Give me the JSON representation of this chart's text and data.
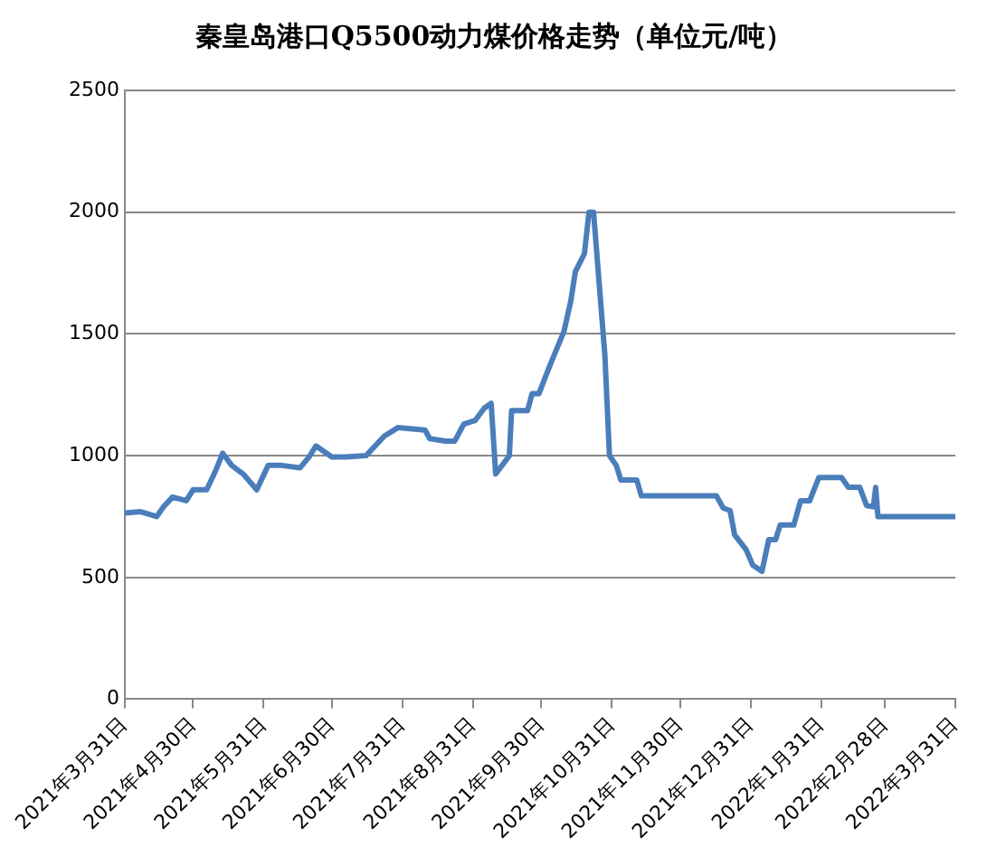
{
  "chart_data": {
    "type": "line",
    "title": "秦皇岛港口Q5500动力煤价格走势（单位元/吨）",
    "x": [
      "2021-03-31",
      "2021-04-07",
      "2021-04-14",
      "2021-04-17",
      "2021-04-21",
      "2021-04-27",
      "2021-04-30",
      "2021-05-06",
      "2021-05-10",
      "2021-05-13",
      "2021-05-17",
      "2021-05-22",
      "2021-05-28",
      "2021-06-02",
      "2021-06-08",
      "2021-06-16",
      "2021-06-20",
      "2021-06-23",
      "2021-06-30",
      "2021-07-06",
      "2021-07-15",
      "2021-07-23",
      "2021-07-29",
      "2021-08-10",
      "2021-08-12",
      "2021-08-19",
      "2021-08-23",
      "2021-08-27",
      "2021-09-01",
      "2021-09-05",
      "2021-09-08",
      "2021-09-10",
      "2021-09-16",
      "2021-09-17",
      "2021-09-24",
      "2021-09-26",
      "2021-09-29",
      "2021-10-04",
      "2021-10-10",
      "2021-10-13",
      "2021-10-15",
      "2021-10-19",
      "2021-10-21",
      "2021-10-23",
      "2021-10-28",
      "2021-10-30",
      "2021-11-02",
      "2021-11-04",
      "2021-11-11",
      "2021-11-13",
      "2021-12-16",
      "2021-12-19",
      "2021-12-22",
      "2021-12-24",
      "2021-12-29",
      "2022-01-01",
      "2022-01-05",
      "2022-01-08",
      "2022-01-11",
      "2022-01-13",
      "2022-01-19",
      "2022-01-22",
      "2022-01-26",
      "2022-01-30",
      "2022-02-09",
      "2022-02-12",
      "2022-02-17",
      "2022-02-20",
      "2022-02-23",
      "2022-02-24",
      "2022-02-25",
      "2022-03-31"
    ],
    "series": [
      {
        "color": "#4a7ebb",
        "values": [
          765,
          770,
          750,
          790,
          830,
          815,
          860,
          860,
          940,
          1010,
          960,
          925,
          860,
          960,
          960,
          950,
          995,
          1040,
          995,
          995,
          1000,
          1080,
          1115,
          1105,
          1070,
          1060,
          1060,
          1130,
          1145,
          1195,
          1215,
          925,
          1000,
          1185,
          1185,
          1255,
          1255,
          1375,
          1510,
          1635,
          1755,
          1830,
          2000,
          2000,
          1410,
          1000,
          960,
          900,
          900,
          835,
          835,
          785,
          775,
          675,
          615,
          550,
          525,
          655,
          655,
          715,
          715,
          815,
          815,
          910,
          910,
          870,
          870,
          795,
          790,
          870,
          750,
          750
        ]
      }
    ],
    "xlim": [
      "2021-03-31",
      "2022-03-31"
    ],
    "xticks": [
      {
        "value": "2021-03-31",
        "label": "2021年3月31日"
      },
      {
        "value": "2021-04-30",
        "label": "2021年4月30日"
      },
      {
        "value": "2021-05-31",
        "label": "2021年5月31日"
      },
      {
        "value": "2021-06-30",
        "label": "2021年6月30日"
      },
      {
        "value": "2021-07-31",
        "label": "2021年7月31日"
      },
      {
        "value": "2021-08-31",
        "label": "2021年8月31日"
      },
      {
        "value": "2021-09-30",
        "label": "2021年9月30日"
      },
      {
        "value": "2021-10-31",
        "label": "2021年10月31日"
      },
      {
        "value": "2021-11-30",
        "label": "2021年11月30日"
      },
      {
        "value": "2021-12-31",
        "label": "2021年12月31日"
      },
      {
        "value": "2022-01-31",
        "label": "2022年1月31日"
      },
      {
        "value": "2022-02-28",
        "label": "2022年2月28日"
      },
      {
        "value": "2022-03-31",
        "label": "2022年3月31日"
      }
    ],
    "ylim": [
      0,
      2500
    ],
    "yticks": [
      0,
      500,
      1000,
      1500,
      2000,
      2500
    ],
    "grid": "y",
    "marker": "none",
    "line_style": "solid"
  }
}
